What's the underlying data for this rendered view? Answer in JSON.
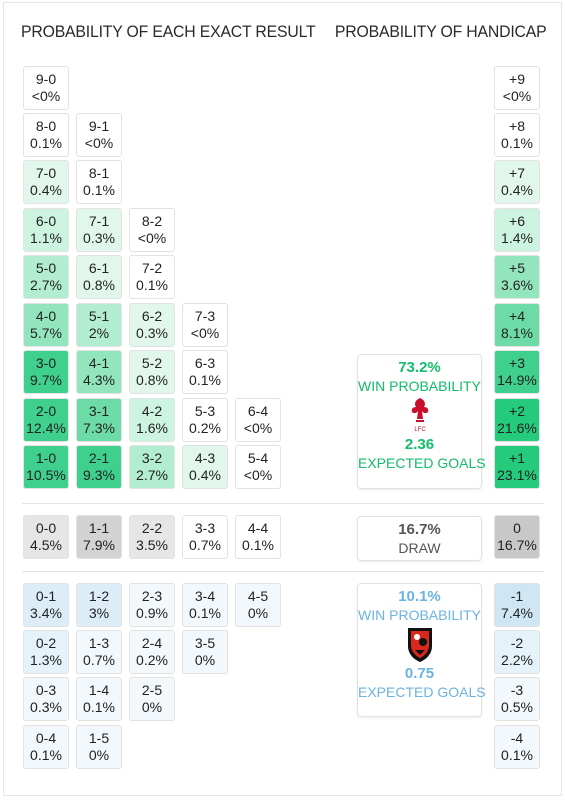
{
  "titles": {
    "exact": "PROBABILITY OF EACH EXACT RESULT",
    "handicap": "PROBABILITY OF HANDICAP"
  },
  "colors": {
    "home": "#12bd6b",
    "away": "#6bb3e0",
    "draw": "#555555"
  },
  "home_wins": [
    [
      "9-0",
      "<0%"
    ],
    [
      "8-0",
      "0.1%"
    ],
    [
      "9-1",
      "<0%"
    ],
    [
      "7-0",
      "0.4%"
    ],
    [
      "8-1",
      "0.1%"
    ],
    [
      "6-0",
      "1.1%"
    ],
    [
      "7-1",
      "0.3%"
    ],
    [
      "8-2",
      "<0%"
    ],
    [
      "5-0",
      "2.7%"
    ],
    [
      "6-1",
      "0.8%"
    ],
    [
      "7-2",
      "0.1%"
    ],
    [
      "4-0",
      "5.7%"
    ],
    [
      "5-1",
      "2%"
    ],
    [
      "6-2",
      "0.3%"
    ],
    [
      "7-3",
      "<0%"
    ],
    [
      "3-0",
      "9.7%"
    ],
    [
      "4-1",
      "4.3%"
    ],
    [
      "5-2",
      "0.8%"
    ],
    [
      "6-3",
      "0.1%"
    ],
    [
      "2-0",
      "12.4%"
    ],
    [
      "3-1",
      "7.3%"
    ],
    [
      "4-2",
      "1.6%"
    ],
    [
      "5-3",
      "0.2%"
    ],
    [
      "6-4",
      "<0%"
    ],
    [
      "1-0",
      "10.5%"
    ],
    [
      "2-1",
      "9.3%"
    ],
    [
      "3-2",
      "2.7%"
    ],
    [
      "4-3",
      "0.4%"
    ],
    [
      "5-4",
      "<0%"
    ]
  ],
  "draws": [
    [
      "0-0",
      "4.5%"
    ],
    [
      "1-1",
      "7.9%"
    ],
    [
      "2-2",
      "3.5%"
    ],
    [
      "3-3",
      "0.7%"
    ],
    [
      "4-4",
      "0.1%"
    ]
  ],
  "away_wins": [
    [
      "0-1",
      "3.4%"
    ],
    [
      "1-2",
      "3%"
    ],
    [
      "2-3",
      "0.9%"
    ],
    [
      "3-4",
      "0.1%"
    ],
    [
      "4-5",
      "0%"
    ],
    [
      "0-2",
      "1.3%"
    ],
    [
      "1-3",
      "0.7%"
    ],
    [
      "2-4",
      "0.2%"
    ],
    [
      "3-5",
      "0%"
    ],
    [
      "0-3",
      "0.3%"
    ],
    [
      "1-4",
      "0.1%"
    ],
    [
      "2-5",
      "0%"
    ],
    [
      "0-4",
      "0.1%"
    ],
    [
      "1-5",
      "0%"
    ]
  ],
  "handicap_home": [
    [
      "+9",
      "<0%"
    ],
    [
      "+8",
      "0.1%"
    ],
    [
      "+7",
      "0.4%"
    ],
    [
      "+6",
      "1.4%"
    ],
    [
      "+5",
      "3.6%"
    ],
    [
      "+4",
      "8.1%"
    ],
    [
      "+3",
      "14.9%"
    ],
    [
      "+2",
      "21.6%"
    ],
    [
      "+1",
      "23.1%"
    ]
  ],
  "handicap_draw": [
    "0",
    "16.7%"
  ],
  "handicap_away": [
    [
      "-1",
      "7.4%"
    ],
    [
      "-2",
      "2.2%"
    ],
    [
      "-3",
      "0.5%"
    ],
    [
      "-4",
      "0.1%"
    ]
  ],
  "home_team": {
    "win_probability": "73.2%",
    "win_label": "WIN PROBABILITY",
    "crest_icon": "liverpool-crest-icon",
    "crest_text": "LFC",
    "expected_goals": "2.36",
    "xg_label": "EXPECTED GOALS"
  },
  "draw_panel": {
    "probability": "16.7%",
    "label": "DRAW"
  },
  "away_team": {
    "win_probability": "10.1%",
    "win_label": "WIN PROBABILITY",
    "crest_icon": "bournemouth-crest-icon",
    "expected_goals": "0.75",
    "xg_label": "EXPECTED GOALS"
  }
}
